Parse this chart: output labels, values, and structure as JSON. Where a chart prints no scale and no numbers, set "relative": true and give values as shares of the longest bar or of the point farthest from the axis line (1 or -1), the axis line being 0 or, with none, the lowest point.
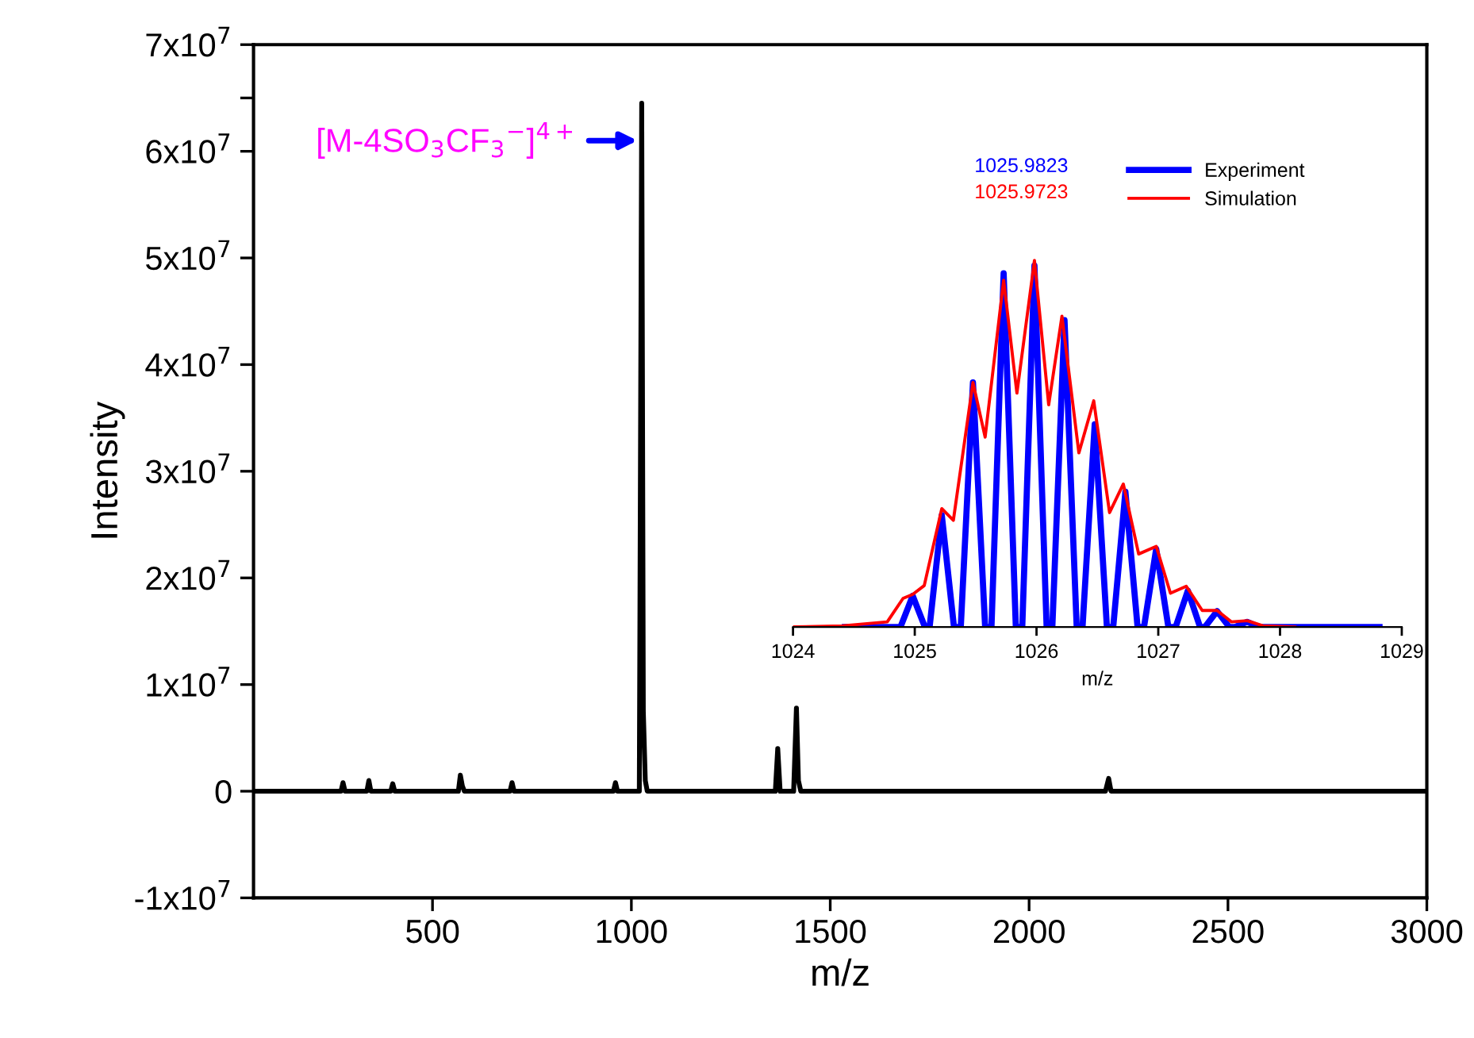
{
  "chart_data": [
    {
      "type": "line",
      "xlabel": "m/z",
      "ylabel": "Intensity",
      "x": [
        50,
        270,
        275,
        280,
        335,
        340,
        345,
        395,
        400,
        405,
        565,
        570,
        575,
        580,
        695,
        700,
        705,
        955,
        960,
        965,
        1020,
        1026,
        1030,
        1035,
        1040,
        1362,
        1368,
        1374,
        1408,
        1415,
        1420,
        1426,
        2192,
        2200,
        2206,
        3000
      ],
      "series": [
        {
          "color": "#000000",
          "values": [
            0,
            0,
            800000.0,
            0,
            0,
            1000000.0,
            0,
            0,
            700000.0,
            0,
            0,
            1500000.0,
            500000.0,
            0,
            0,
            800000.0,
            0,
            0,
            800000.0,
            0,
            0,
            64500000.0,
            7500000.0,
            1000000.0,
            0,
            0,
            4000000.0,
            0,
            0,
            7800000.0,
            1000000.0,
            0,
            0,
            1200000.0,
            0,
            0
          ]
        }
      ],
      "xlim": [
        50,
        3000
      ],
      "ylim": [
        -10000000.0,
        70000000.0
      ],
      "xticks": [
        500,
        1000,
        1500,
        2000,
        2500,
        3000
      ],
      "yticks": [
        {
          "value": -10000000.0,
          "label": "-1x10$^{7}$"
        },
        {
          "value": 0,
          "label": "0"
        },
        {
          "value": 10000000.0,
          "label": "1x10$^{7}$"
        },
        {
          "value": 20000000.0,
          "label": "2x10$^{7}$"
        },
        {
          "value": 30000000.0,
          "label": "3x10$^{7}$"
        },
        {
          "value": 40000000.0,
          "label": "4x10$^{7}$"
        },
        {
          "value": 50000000.0,
          "label": "5x10$^{7}$"
        },
        {
          "value": 60000000.0,
          "label": "6x10$^{7}$"
        },
        {
          "value": 65000000.0,
          "label": null
        },
        {
          "value": 70000000.0,
          "label": "7x10$^{7}$"
        }
      ],
      "annotations": [
        {
          "text": "[M-4SO$_{3}$CF$_{3}$$^{−}$]$^{4+}$",
          "x": 1026,
          "y": 61000000.0
        }
      ],
      "grid": false,
      "legend": false,
      "marker": "none",
      "line_style": "solid"
    },
    {
      "type": "line",
      "relative": true,
      "xlabel": "m/z",
      "tick_labels": "x",
      "series": [
        {
          "name": "Experiment",
          "color": "#0000ff",
          "x": [
            1024.426,
            1024.883,
            1024.983,
            1025.083,
            1025.122,
            1025.222,
            1025.322,
            1025.378,
            1025.478,
            1025.578,
            1025.63,
            1025.73,
            1025.83,
            1025.883,
            1025.983,
            1026.083,
            1026.13,
            1026.23,
            1026.33,
            1026.378,
            1026.478,
            1026.578,
            1026.63,
            1026.73,
            1026.83,
            1026.883,
            1026.983,
            1027.083,
            1027.143,
            1027.243,
            1027.343,
            1027.383,
            1027.483,
            1027.583,
            1027.63,
            1027.73,
            1027.83,
            1028.817
          ],
          "values": [
            0,
            0,
            0.085,
            0,
            0,
            0.305,
            0,
            0,
            0.667,
            0,
            0,
            0.965,
            0,
            0,
            0.986,
            0,
            0,
            0.837,
            0,
            0,
            0.553,
            0,
            0,
            0.369,
            0,
            0,
            0.213,
            0,
            0,
            0.099,
            0,
            0,
            0.043,
            0,
            0,
            0.014,
            0,
            0
          ]
        },
        {
          "name": "Simulation",
          "color": "#ff0000",
          "x": [
            1024,
            1024.404,
            1024.774,
            1024.904,
            1024.983,
            1025.078,
            1025.222,
            1025.317,
            1025.478,
            1025.578,
            1025.73,
            1025.839,
            1025.983,
            1026.1,
            1026.209,
            1026.348,
            1026.47,
            1026.6,
            1026.713,
            1026.839,
            1026.983,
            1027.1,
            1027.23,
            1027.361,
            1027.483,
            1027.6,
            1027.73,
            1027.861,
            1028.122
          ],
          "values": [
            0,
            0.003,
            0.014,
            0.078,
            0.089,
            0.113,
            0.323,
            0.291,
            0.667,
            0.518,
            0.946,
            0.638,
            1.0,
            0.606,
            0.848,
            0.475,
            0.617,
            0.312,
            0.39,
            0.199,
            0.22,
            0.092,
            0.111,
            0.045,
            0.045,
            0.014,
            0.017,
            0.003,
            0
          ]
        }
      ],
      "xlim": [
        1024,
        1029
      ],
      "xticks": [
        1024,
        1025,
        1026,
        1027,
        1028,
        1029
      ],
      "annotations": [
        "1025.9823",
        "1025.9723"
      ],
      "grid": false,
      "legend": "top right",
      "marker": "none",
      "line_style": "solid"
    }
  ]
}
